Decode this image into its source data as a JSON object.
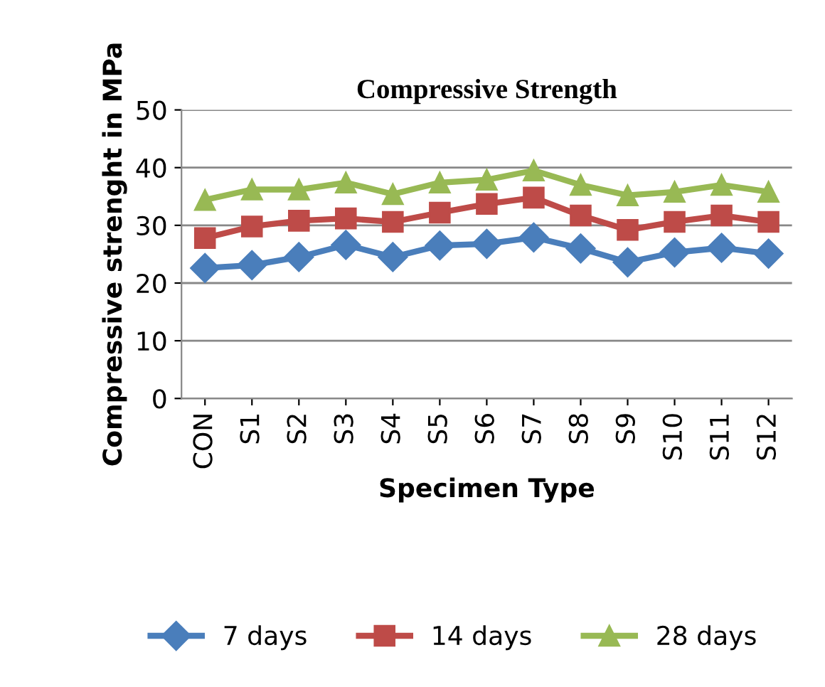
{
  "chart_data": {
    "type": "line",
    "title": "Compressive Strength",
    "xlabel": "Specimen Type",
    "ylabel": "Compressive strenght in MPa",
    "categories": [
      "CON",
      "S1",
      "S2",
      "S3",
      "S4",
      "S5",
      "S6",
      "S7",
      "S8",
      "S9",
      "S10",
      "S11",
      "S12"
    ],
    "series": [
      {
        "name": "7 days",
        "color": "#4a7ebb",
        "marker": "diamond",
        "values": [
          22.6,
          23.1,
          24.5,
          26.6,
          24.5,
          26.5,
          26.8,
          27.9,
          26.0,
          23.6,
          25.3,
          26.1,
          25.1
        ]
      },
      {
        "name": "14 days",
        "color": "#be4b48",
        "marker": "square",
        "values": [
          27.8,
          29.8,
          30.8,
          31.2,
          30.6,
          32.2,
          33.7,
          34.8,
          31.7,
          29.2,
          30.6,
          31.7,
          30.6
        ]
      },
      {
        "name": "28 days",
        "color": "#98b954",
        "marker": "triangle",
        "values": [
          34.4,
          36.2,
          36.2,
          37.4,
          35.4,
          37.4,
          37.9,
          39.5,
          37.0,
          35.2,
          35.8,
          37.0,
          35.8
        ]
      }
    ],
    "ylim": [
      0,
      50
    ],
    "yticks": [
      0,
      10,
      20,
      30,
      40,
      50
    ],
    "grid": "y",
    "legend": "bottom"
  }
}
